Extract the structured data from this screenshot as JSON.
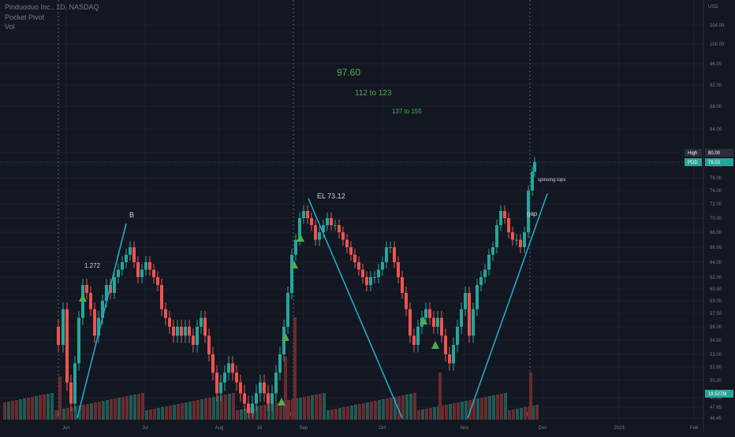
{
  "header": {
    "title": "Pinduoduo Inc., 1D, NASDAQ",
    "indicator": "Pocket Pivot",
    "volume": "Vol"
  },
  "chart_data": {
    "type": "candlestick",
    "symbol": "PDD",
    "currency": "USD",
    "y_ticks": [
      46.45,
      47.65,
      48.6,
      50.2,
      51.6,
      53.0,
      54.5,
      56.0,
      57.5,
      59.0,
      60.5,
      62.0,
      64.0,
      66.0,
      68.0,
      70.0,
      72.0,
      74.0,
      76.0,
      78.0,
      80.0,
      84.0,
      88.0,
      92.0,
      96.0,
      100.0,
      104.0
    ],
    "x_labels": [
      "Jun",
      "Jul",
      "Aug",
      "16",
      "Sep",
      "Oct",
      "Nov",
      "Dec",
      "2023",
      "Feb"
    ],
    "price_tags": [
      {
        "label": "High",
        "value": "80.00",
        "color": "#131722"
      },
      {
        "label": "PDD",
        "value": "78.53",
        "color": "#26a69a"
      },
      {
        "label": "",
        "value": "18.527M",
        "color": "#26a69a"
      }
    ],
    "annotations": [
      "97.60",
      "112 to 123",
      "137 to 155",
      "B",
      "1.272",
      "EL 73.12",
      "spinning tops",
      "gap"
    ],
    "ohlc_last": {
      "high": 80.0,
      "close": 78.53
    }
  },
  "colors": {
    "up": "#26a69a",
    "down": "#ef5350",
    "trend": "#22a9c7",
    "text_green": "#4caf50",
    "background": "#131722"
  }
}
